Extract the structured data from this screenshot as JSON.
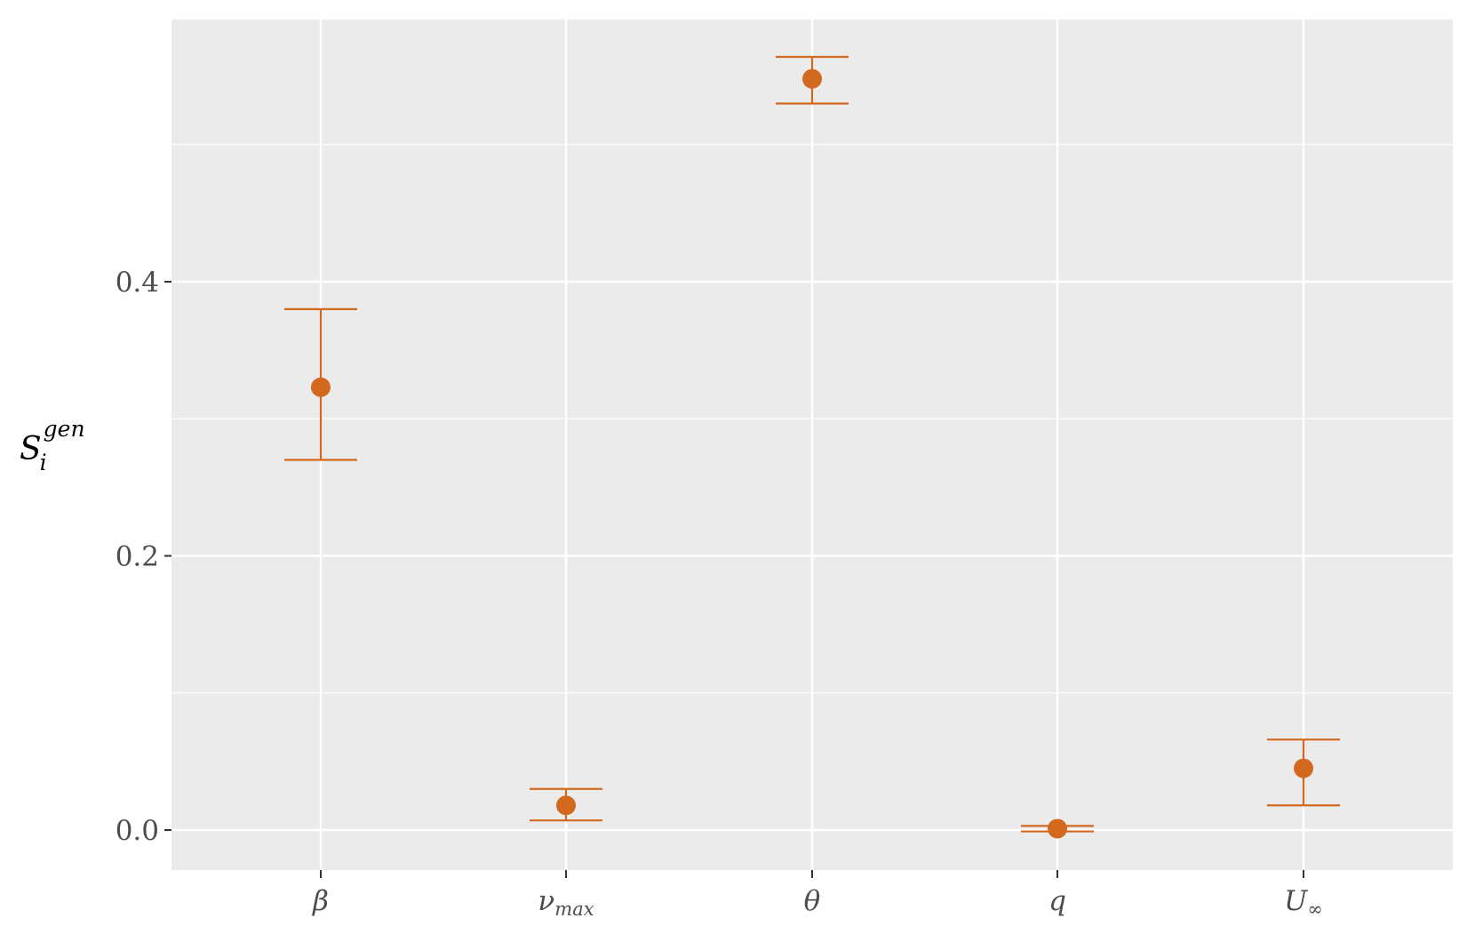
{
  "chart_data": {
    "type": "scatter",
    "ylabel": {
      "main": "S",
      "sub": "i",
      "sup": "gen"
    },
    "ylim": [
      -0.047,
      0.575
    ],
    "y_ticks": [
      {
        "value": 0.0,
        "label": "0.0"
      },
      {
        "value": 0.2,
        "label": "0.2"
      },
      {
        "value": 0.4,
        "label": "0.4"
      }
    ],
    "y_minor_grid": [
      0.1,
      0.3,
      0.5
    ],
    "categories": [
      {
        "main": "β",
        "sub": ""
      },
      {
        "main": "ν",
        "sub": "max"
      },
      {
        "main": "θ",
        "sub": ""
      },
      {
        "main": "q",
        "sub": ""
      },
      {
        "main": "U",
        "sub": "∞"
      }
    ],
    "points": [
      {
        "value": 0.323,
        "lower": 0.27,
        "upper": 0.38
      },
      {
        "value": 0.018,
        "lower": 0.007,
        "upper": 0.03
      },
      {
        "value": 0.548,
        "lower": 0.53,
        "upper": 0.564
      },
      {
        "value": 0.001,
        "lower": -0.001,
        "upper": 0.003
      },
      {
        "value": 0.045,
        "lower": 0.018,
        "upper": 0.066
      }
    ],
    "grid": true,
    "colors": {
      "marker": "#d2691e",
      "panel_background": "#ebebeb",
      "grid_line": "#ffffff",
      "tick_label": "#4d4d4d"
    }
  }
}
